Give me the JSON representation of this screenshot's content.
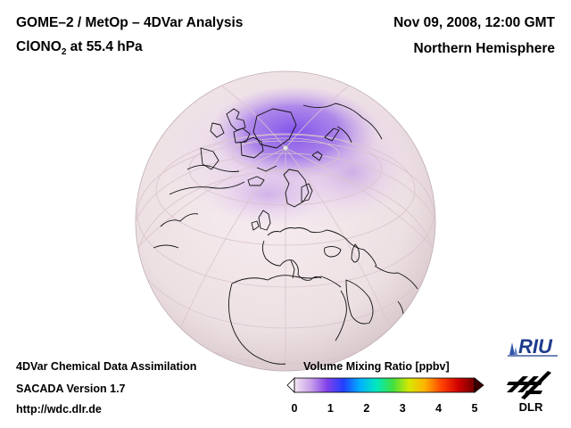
{
  "header": {
    "title_line1": "GOME–2 / MetOp – 4DVar Analysis",
    "species_main": "ClONO",
    "species_sub": "2",
    "species_rest": " at 55.4 hPa",
    "date": "Nov 09, 2008, 12:00 GMT",
    "region": "Northern Hemisphere"
  },
  "footer": {
    "line1": "4DVar Chemical Data Assimilation",
    "line2": "SACADA Version 1.7",
    "line3": "http://wdc.dlr.de"
  },
  "legend": {
    "title": "Volume Mixing Ratio [ppbv]",
    "min": 0,
    "max": 5,
    "ticks": [
      "0",
      "1",
      "2",
      "3",
      "4",
      "5"
    ],
    "colors": [
      "#f3e6f1",
      "#c9a0ea",
      "#8040e8",
      "#2040ff",
      "#00b0ff",
      "#00e8c0",
      "#40e040",
      "#d8e800",
      "#ffb000",
      "#ff4000",
      "#d00000",
      "#700000"
    ]
  },
  "map": {
    "projection": "orthographic",
    "hemisphere": "northern",
    "enhanced_region": "Arctic polar vortex",
    "colors": {
      "background": "#f0e3e7",
      "vortex": "#8e60ea",
      "edge": "#c49ee8",
      "coast": "#111111"
    }
  },
  "logos": {
    "riu_text": "RIU",
    "dlr_text": "DLR"
  }
}
